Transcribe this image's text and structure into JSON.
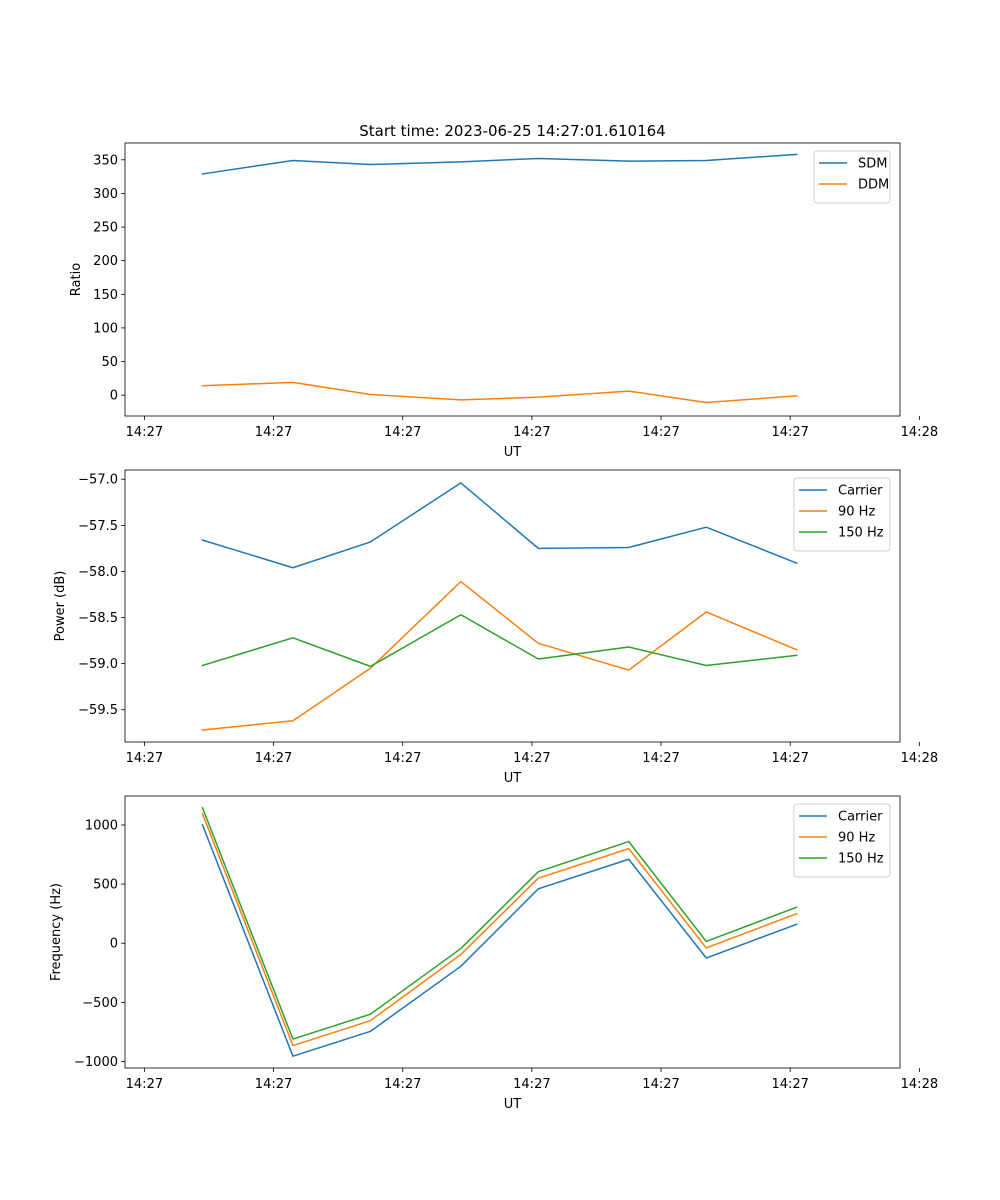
{
  "figure_title": "Start time: 2023-06-25 14:27:01.610164",
  "chart_data": [
    {
      "type": "line",
      "title": "Start time: 2023-06-25 14:27:01.610164",
      "xlabel": "UT",
      "ylabel": "Ratio",
      "x": [
        "14:27:01.6",
        "14:27:02.3",
        "14:27:02.9",
        "14:27:03.6",
        "14:27:04.2",
        "14:27:04.9",
        "14:27:05.5",
        "14:27:06.2"
      ],
      "xlim": [
        "14:27:01.0",
        "14:27:07.0"
      ],
      "xticks": [
        {
          "value": "14:27:01.15",
          "label": "14:27"
        },
        {
          "value": "14:27:02.15",
          "label": "14:27"
        },
        {
          "value": "14:27:03.15",
          "label": "14:27"
        },
        {
          "value": "14:27:04.15",
          "label": "14:27"
        },
        {
          "value": "14:27:05.15",
          "label": "14:27"
        },
        {
          "value": "14:27:06.15",
          "label": "14:27"
        },
        {
          "value": "14:27:07.15",
          "label": "14:28"
        }
      ],
      "ylim": [
        -31,
        375
      ],
      "yticks": [
        0,
        50,
        100,
        150,
        200,
        250,
        300,
        350
      ],
      "ytick_labels": [
        "0",
        "50",
        "100",
        "150",
        "200",
        "250",
        "300",
        "350"
      ],
      "legend_position": "top-right",
      "series": [
        {
          "name": "SDM",
          "color": "#1f77b4",
          "values": [
            329,
            349,
            343,
            347,
            352,
            348,
            349,
            358
          ]
        },
        {
          "name": "DDM",
          "color": "#ff7f0e",
          "values": [
            14,
            19,
            1,
            -7,
            -3,
            6,
            -11,
            -1
          ]
        }
      ]
    },
    {
      "type": "line",
      "xlabel": "UT",
      "ylabel": "Power (dB)",
      "x": [
        "14:27:01.6",
        "14:27:02.3",
        "14:27:02.9",
        "14:27:03.6",
        "14:27:04.2",
        "14:27:04.9",
        "14:27:05.5",
        "14:27:06.2"
      ],
      "xlim": [
        "14:27:01.0",
        "14:27:07.0"
      ],
      "xticks": [
        {
          "value": "14:27:01.15",
          "label": "14:27"
        },
        {
          "value": "14:27:02.15",
          "label": "14:27"
        },
        {
          "value": "14:27:03.15",
          "label": "14:27"
        },
        {
          "value": "14:27:04.15",
          "label": "14:27"
        },
        {
          "value": "14:27:05.15",
          "label": "14:27"
        },
        {
          "value": "14:27:06.15",
          "label": "14:27"
        },
        {
          "value": "14:27:07.15",
          "label": "14:28"
        }
      ],
      "ylim": [
        -59.85,
        -56.9
      ],
      "yticks": [
        -59.5,
        -59.0,
        -58.5,
        -58.0,
        -57.5,
        -57.0
      ],
      "ytick_labels": [
        "−59.5",
        "−59.0",
        "−58.5",
        "−58.0",
        "−57.5",
        "−57.0"
      ],
      "legend_position": "top-right",
      "series": [
        {
          "name": "Carrier",
          "color": "#1f77b4",
          "values": [
            -57.66,
            -57.96,
            -57.68,
            -57.04,
            -57.75,
            -57.74,
            -57.52,
            -57.91
          ]
        },
        {
          "name": "90 Hz",
          "color": "#ff7f0e",
          "values": [
            -59.72,
            -59.62,
            -59.05,
            -58.11,
            -58.78,
            -59.07,
            -58.44,
            -58.85
          ]
        },
        {
          "name": "150 Hz",
          "color": "#2ca02c",
          "values": [
            -59.02,
            -58.72,
            -59.03,
            -58.47,
            -58.95,
            -58.82,
            -59.02,
            -58.91
          ]
        }
      ]
    },
    {
      "type": "line",
      "xlabel": "UT",
      "ylabel": "Frequency (Hz)",
      "x": [
        "14:27:01.6",
        "14:27:02.3",
        "14:27:02.9",
        "14:27:03.6",
        "14:27:04.2",
        "14:27:04.9",
        "14:27:05.5",
        "14:27:06.2"
      ],
      "xlim": [
        "14:27:01.0",
        "14:27:07.0"
      ],
      "xticks": [
        {
          "value": "14:27:01.15",
          "label": "14:27"
        },
        {
          "value": "14:27:02.15",
          "label": "14:27"
        },
        {
          "value": "14:27:03.15",
          "label": "14:27"
        },
        {
          "value": "14:27:04.15",
          "label": "14:27"
        },
        {
          "value": "14:27:05.15",
          "label": "14:27"
        },
        {
          "value": "14:27:06.15",
          "label": "14:27"
        },
        {
          "value": "14:27:07.15",
          "label": "14:28"
        }
      ],
      "ylim": [
        -1055,
        1245
      ],
      "yticks": [
        -1000,
        -500,
        0,
        500,
        1000
      ],
      "ytick_labels": [
        "−1000",
        "−500",
        "0",
        "500",
        "1000"
      ],
      "legend_position": "top-right",
      "series": [
        {
          "name": "Carrier",
          "color": "#1f77b4",
          "values": [
            1000,
            -955,
            -745,
            -195,
            460,
            710,
            -125,
            160
          ]
        },
        {
          "name": "90 Hz",
          "color": "#ff7f0e",
          "values": [
            1095,
            -865,
            -655,
            -95,
            550,
            800,
            -40,
            250
          ]
        },
        {
          "name": "150 Hz",
          "color": "#2ca02c",
          "values": [
            1145,
            -810,
            -600,
            -45,
            605,
            860,
            15,
            305
          ]
        }
      ]
    }
  ]
}
